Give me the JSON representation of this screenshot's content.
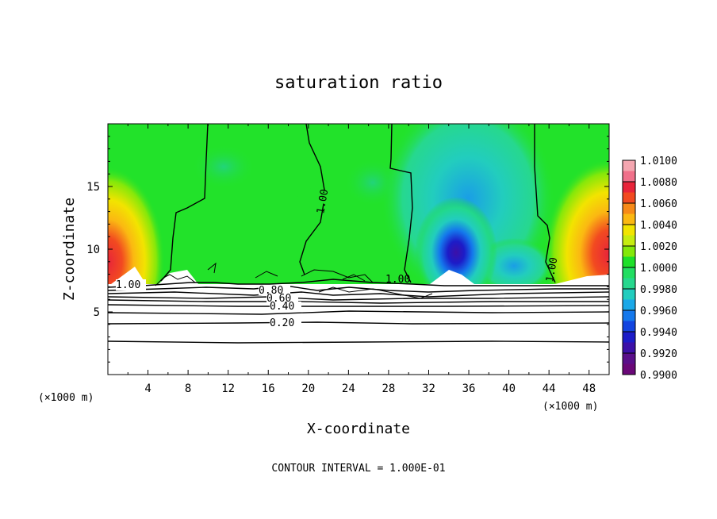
{
  "chart_data": {
    "type": "heatmap",
    "title": "saturation ratio",
    "xlabel": "X-coordinate",
    "ylabel": "Z-coordinate",
    "x_unit_left": "(×1000 m)",
    "x_unit_right": "(×1000 m)",
    "xlim": [
      0,
      50
    ],
    "ylim": [
      0,
      20
    ],
    "xticks": [
      4,
      8,
      12,
      16,
      20,
      24,
      28,
      32,
      36,
      40,
      44,
      48
    ],
    "yticks": [
      5,
      10,
      15
    ],
    "footer": "CONTOUR INTERVAL = 1.000E-01",
    "colorbar": {
      "min": 0.99,
      "max": 1.01,
      "labels": [
        "1.0100",
        "1.0080",
        "1.0060",
        "1.0040",
        "1.0020",
        "1.0000",
        "0.9980",
        "0.9960",
        "0.9940",
        "0.9920",
        "0.9900"
      ],
      "colors": [
        "#f4a6b0",
        "#f0708a",
        "#e8243a",
        "#f24a20",
        "#f78a18",
        "#fbb812",
        "#f2e400",
        "#c6ec10",
        "#84e80a",
        "#1ee02a",
        "#22de62",
        "#26d88e",
        "#22cdbe",
        "#1aa8e8",
        "#1478ec",
        "#1244e0",
        "#1c1cc8",
        "#3c10a8",
        "#5a0f8a",
        "#6a0878"
      ]
    },
    "contour_labels": [
      "1.00",
      "1.00",
      "1.00",
      "1.00",
      "0.80",
      "0.60",
      "0.40",
      "0.20"
    ]
  }
}
